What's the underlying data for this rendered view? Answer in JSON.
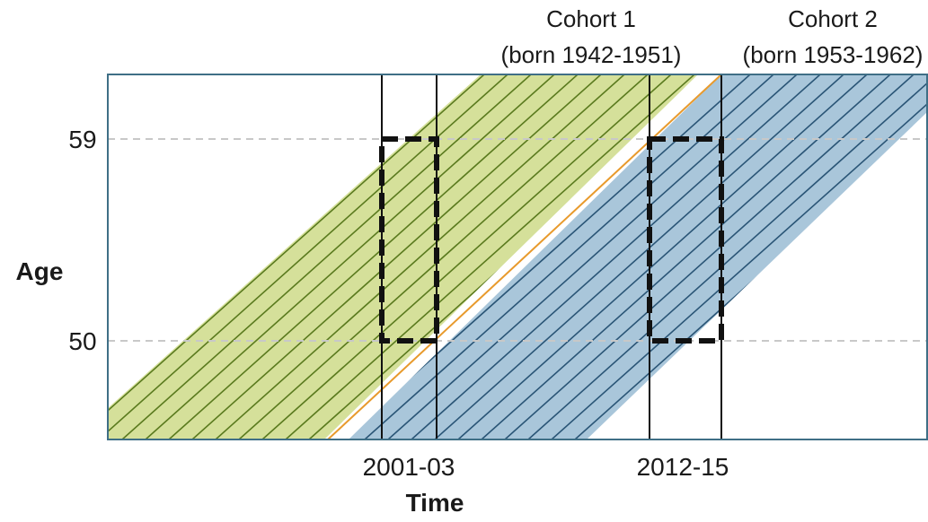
{
  "cohorts": [
    {
      "name": "Cohort 1",
      "birth_range": "(born 1942-1951)",
      "color": "#d5e09a",
      "hatch_color": "#5a7a1e"
    },
    {
      "name": "Cohort 2",
      "birth_range": "(born 1953-1962)",
      "color": "#a9c6da",
      "hatch_color": "#2a5576"
    }
  ],
  "axes": {
    "x_title": "Time",
    "y_title": "Age",
    "y_ticks": [
      "59",
      "50"
    ],
    "x_ticks": [
      "2001-03",
      "2012-15"
    ]
  },
  "colors": {
    "frame": "#3f6f86",
    "separator_line": "#e89a2c",
    "gridline": "#c8c8c8",
    "window_border": "#111111",
    "window_fill": "#ffffff"
  }
}
